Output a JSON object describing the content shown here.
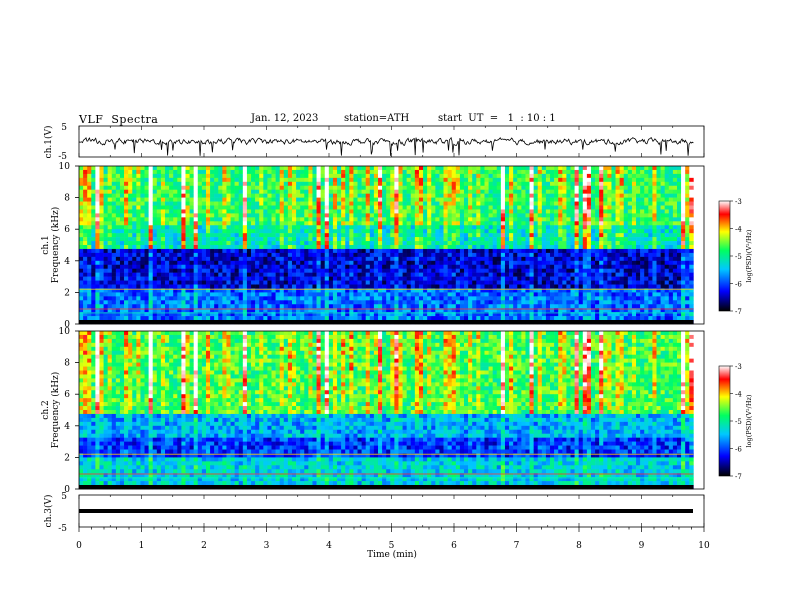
{
  "header": {
    "title": "VLF  Spectra",
    "date": "Jan. 12, 2023",
    "station": "station=ATH",
    "start": "start  UT  =   1  : 10 : 1"
  },
  "chart_data": [
    {
      "type": "line",
      "panel": "ch.1 waveform",
      "ylabel": "ch.1(V)",
      "ylim": [
        -5,
        5
      ],
      "yticks": [
        "5",
        "-5"
      ],
      "x_range_min": [
        0,
        9.83
      ],
      "description_values": "noisy signal centred near 0 V with occasional negative spikes to about -5 V",
      "baseline_v": 0,
      "color": "#000000"
    },
    {
      "type": "heatmap",
      "panel": "ch.1 spectrogram",
      "ylabel_top": "ch.1",
      "ylabel": "Frequency  (kHz)",
      "ylim": [
        0,
        10
      ],
      "yticks": [
        "0",
        "2",
        "4",
        "6",
        "8",
        "10"
      ],
      "x_range_min": [
        0,
        9.83
      ],
      "colorbar": {
        "label": "log(PSD)(V²/Hz)",
        "range": [
          -7,
          -3
        ],
        "ticks": [
          "-3",
          "-4",
          "-5",
          "-6",
          "-7"
        ],
        "colors": [
          "#000000",
          "#0000ff",
          "#00c8ff",
          "#00ff60",
          "#ffff00",
          "#ff0000",
          "#ffffff"
        ]
      },
      "bands": [
        {
          "f_min": 0,
          "f_max": 0.3,
          "level": -7
        },
        {
          "f_min": 0.3,
          "f_max": 2.2,
          "level": -5.9
        },
        {
          "f_min": 2.2,
          "f_max": 4.8,
          "level": -6.4
        },
        {
          "f_min": 4.8,
          "f_max": 6.2,
          "level": -5.2
        },
        {
          "f_min": 6.2,
          "f_max": 10,
          "level": -4.8
        }
      ]
    },
    {
      "type": "heatmap",
      "panel": "ch.2 spectrogram",
      "ylabel_top": "ch.2",
      "ylabel": "Frequency  (kHz)",
      "ylim": [
        0,
        10
      ],
      "yticks": [
        "0",
        "2",
        "4",
        "6",
        "8",
        "10"
      ],
      "x_range_min": [
        0,
        9.83
      ],
      "colorbar": {
        "label": "log(PSD)(V²/Hz)",
        "range": [
          -7,
          -3
        ],
        "ticks": [
          "-3",
          "-4",
          "-5",
          "-6",
          "-7"
        ],
        "colors": [
          "#000000",
          "#0000ff",
          "#00c8ff",
          "#00ff60",
          "#ffff00",
          "#ff0000",
          "#ffffff"
        ]
      },
      "bands": [
        {
          "f_min": 0,
          "f_max": 0.2,
          "level": -7
        },
        {
          "f_min": 0.2,
          "f_max": 2.0,
          "level": -5.4
        },
        {
          "f_min": 2.0,
          "f_max": 3.2,
          "level": -6.1
        },
        {
          "f_min": 3.2,
          "f_max": 4.8,
          "level": -5.6
        },
        {
          "f_min": 4.8,
          "f_max": 10,
          "level": -4.7
        }
      ]
    },
    {
      "type": "line",
      "panel": "ch.3 waveform",
      "ylabel": "ch.3(V)",
      "ylim": [
        -5,
        5
      ],
      "yticks": [
        "5",
        "-5"
      ],
      "x_range_min": [
        0,
        9.83
      ],
      "baseline_v": 0,
      "color": "#000000"
    }
  ],
  "xaxis": {
    "label": "Time  (min)",
    "range": [
      0,
      10
    ],
    "ticks": [
      "0",
      "1",
      "2",
      "3",
      "4",
      "5",
      "6",
      "7",
      "8",
      "9",
      "10"
    ]
  }
}
